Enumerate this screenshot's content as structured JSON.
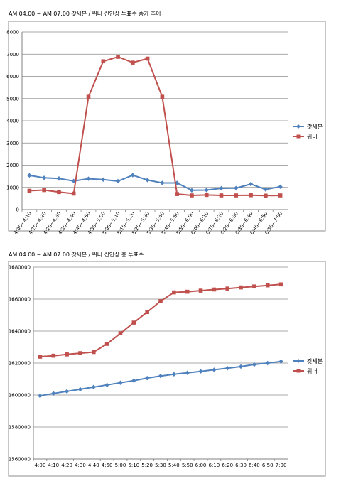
{
  "colors": {
    "series1": "#4f81bd",
    "series2": "#c0504d",
    "grid": "#8c8c8c",
    "frame": "#8c8c8c"
  },
  "chart_data": [
    {
      "type": "line",
      "title": "AM 04:00 ~ AM 07:00 갓세븐 / 위너 신인상 투표수 증가 추이",
      "categories": [
        "4:00~4:10",
        "4:10~4:20",
        "4:20~4:30",
        "4:30~4:40",
        "4:40~4:50",
        "4:50~5:00",
        "5:00~5:10",
        "5:10~5:20",
        "5:20~5:30",
        "5:30~5:40",
        "5:40~5:50",
        "5:50~6:00",
        "6:00~6:10",
        "6:10~6:20",
        "6:20~6:30",
        "6:30~6:40",
        "6:40~6:50",
        "6:50~7:00"
      ],
      "ylim": [
        0,
        8000
      ],
      "yticks": [
        "0",
        "1000",
        "2000",
        "3000",
        "4000",
        "5000",
        "6000",
        "7000",
        "8000"
      ],
      "grid": true,
      "legend": "right",
      "series": [
        {
          "name": "갓세븐",
          "values": [
            1540,
            1430,
            1400,
            1290,
            1390,
            1350,
            1280,
            1550,
            1330,
            1200,
            1200,
            870,
            880,
            960,
            970,
            1150,
            910,
            1030
          ]
        },
        {
          "name": "위너",
          "values": [
            850,
            880,
            790,
            720,
            5080,
            6680,
            6880,
            6620,
            6800,
            5080,
            700,
            640,
            660,
            640,
            640,
            650,
            630,
            640
          ]
        }
      ]
    },
    {
      "type": "line",
      "title": "AM 04:00 ~ AM 07:00 갓세븐 / 위너 신인상 총 투표수",
      "categories": [
        "4:00",
        "4:10",
        "4:20",
        "4:30",
        "4:40",
        "4:50",
        "5:00",
        "5:10",
        "5:20",
        "5:30",
        "5:40",
        "5:50",
        "6:00",
        "6:10",
        "6:20",
        "6:30",
        "6:40",
        "6:50",
        "7:00"
      ],
      "ylim": [
        1560000,
        1680000
      ],
      "yticks": [
        "1560000",
        "1580000",
        "1600000",
        "1620000",
        "1640000",
        "1660000",
        "1680000"
      ],
      "grid": true,
      "legend": "right",
      "series": [
        {
          "name": "갓세븐",
          "values": [
            1599500,
            1601000,
            1602300,
            1603600,
            1605000,
            1606300,
            1607700,
            1609000,
            1610600,
            1611900,
            1613000,
            1613900,
            1614800,
            1615800,
            1616800,
            1617800,
            1619100,
            1620000,
            1621000
          ]
        },
        {
          "name": "위너",
          "values": [
            1624000,
            1624600,
            1625400,
            1626200,
            1626900,
            1632000,
            1638600,
            1645300,
            1651900,
            1658700,
            1664200,
            1664600,
            1665300,
            1666000,
            1666600,
            1667300,
            1667900,
            1668600,
            1669200
          ]
        }
      ]
    }
  ]
}
